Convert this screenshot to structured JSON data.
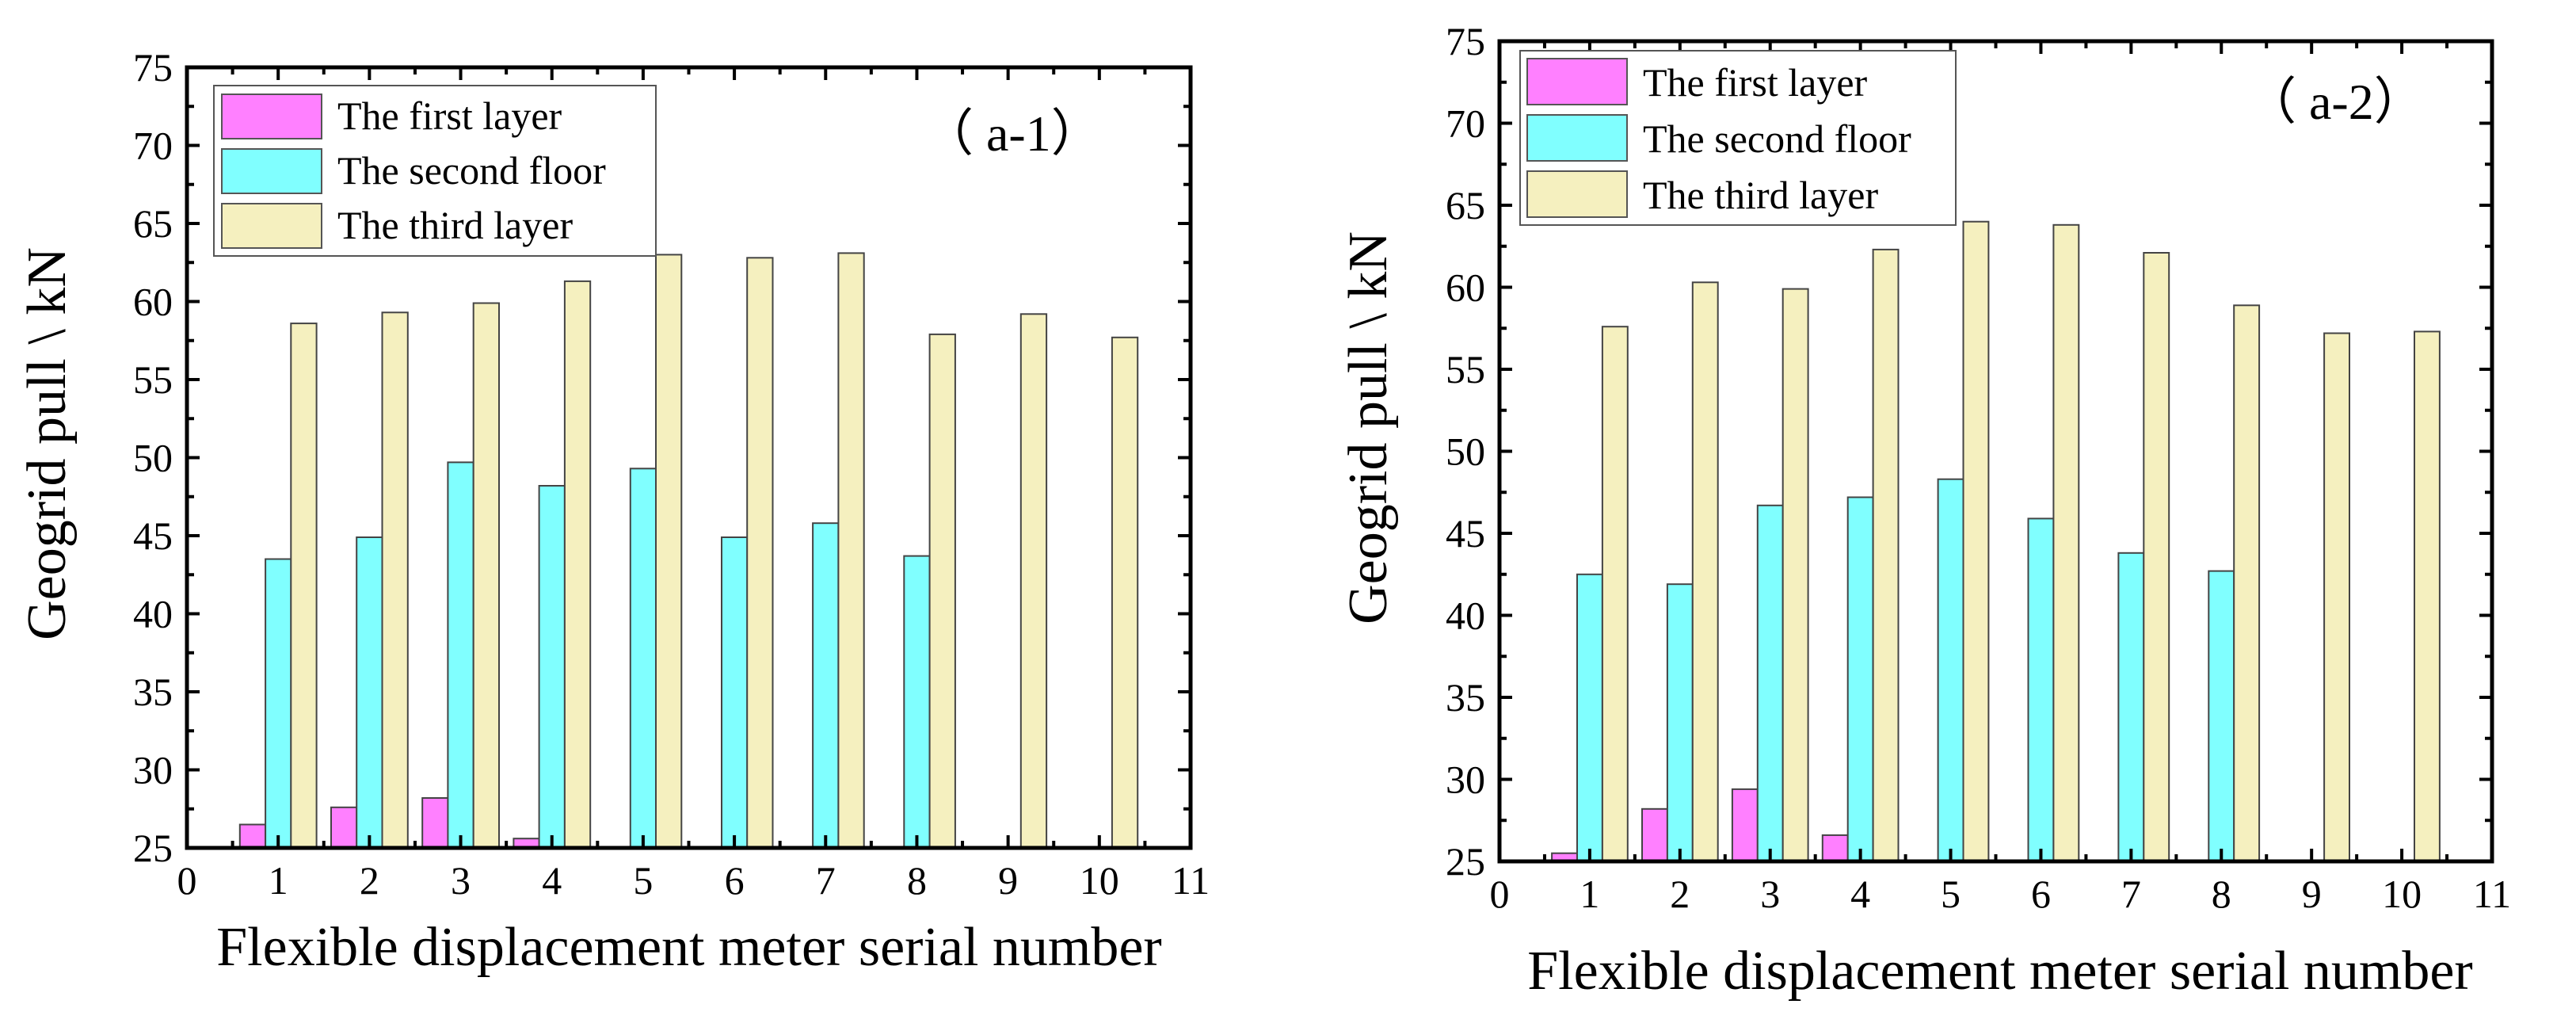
{
  "chart_data": [
    {
      "type": "bar",
      "panel_label": "（ a-1）",
      "xlabel": "Flexible displacement meter serial number",
      "ylabel": "Geogrid pull \\ kN",
      "xlim": [
        0,
        11
      ],
      "ylim": [
        25,
        75
      ],
      "x_ticks": [
        "0",
        "1",
        "2",
        "3",
        "4",
        "5",
        "6",
        "7",
        "8",
        "9",
        "10",
        "11"
      ],
      "y_ticks": [
        "25",
        "30",
        "35",
        "40",
        "45",
        "50",
        "55",
        "60",
        "65",
        "70",
        "75"
      ],
      "categories": [
        1,
        2,
        3,
        4,
        5,
        6,
        7,
        8,
        9,
        10
      ],
      "legend_position": "top-left",
      "series": [
        {
          "name": "The first layer",
          "color": "#ff80ff",
          "values": [
            26.5,
            27.6,
            28.2,
            25.6,
            25,
            25,
            25,
            25,
            25,
            25
          ]
        },
        {
          "name": "The second floor",
          "color": "#80ffff",
          "values": [
            43.5,
            44.9,
            49.7,
            48.2,
            49.3,
            44.9,
            45.8,
            43.7,
            25,
            25
          ]
        },
        {
          "name": "The third layer",
          "color": "#f5f0bf",
          "values": [
            58.6,
            59.3,
            59.9,
            61.3,
            63.0,
            62.8,
            63.1,
            57.9,
            59.2,
            57.7
          ]
        }
      ]
    },
    {
      "type": "bar",
      "panel_label": "（ a-2）",
      "xlabel": "Flexible displacement meter serial number",
      "ylabel": "Geogrid pull \\ kN",
      "xlim": [
        0,
        11
      ],
      "ylim": [
        25,
        75
      ],
      "x_ticks": [
        "0",
        "1",
        "2",
        "3",
        "4",
        "5",
        "6",
        "7",
        "8",
        "9",
        "10",
        "11"
      ],
      "y_ticks": [
        "25",
        "30",
        "35",
        "40",
        "45",
        "50",
        "55",
        "60",
        "65",
        "70",
        "75"
      ],
      "categories": [
        1,
        2,
        3,
        4,
        5,
        6,
        7,
        8,
        9,
        10
      ],
      "legend_position": "top-left",
      "series": [
        {
          "name": "The first layer",
          "color": "#ff80ff",
          "values": [
            25.5,
            28.2,
            29.4,
            26.6,
            25,
            25,
            25,
            25,
            25,
            25
          ]
        },
        {
          "name": "The second floor",
          "color": "#80ffff",
          "values": [
            42.5,
            41.9,
            46.7,
            47.2,
            48.3,
            45.9,
            43.8,
            42.7,
            25,
            25
          ]
        },
        {
          "name": "The third layer",
          "color": "#f5f0bf",
          "values": [
            57.6,
            60.3,
            59.9,
            62.3,
            64.0,
            63.8,
            62.1,
            58.9,
            57.2,
            57.3
          ]
        }
      ]
    }
  ]
}
